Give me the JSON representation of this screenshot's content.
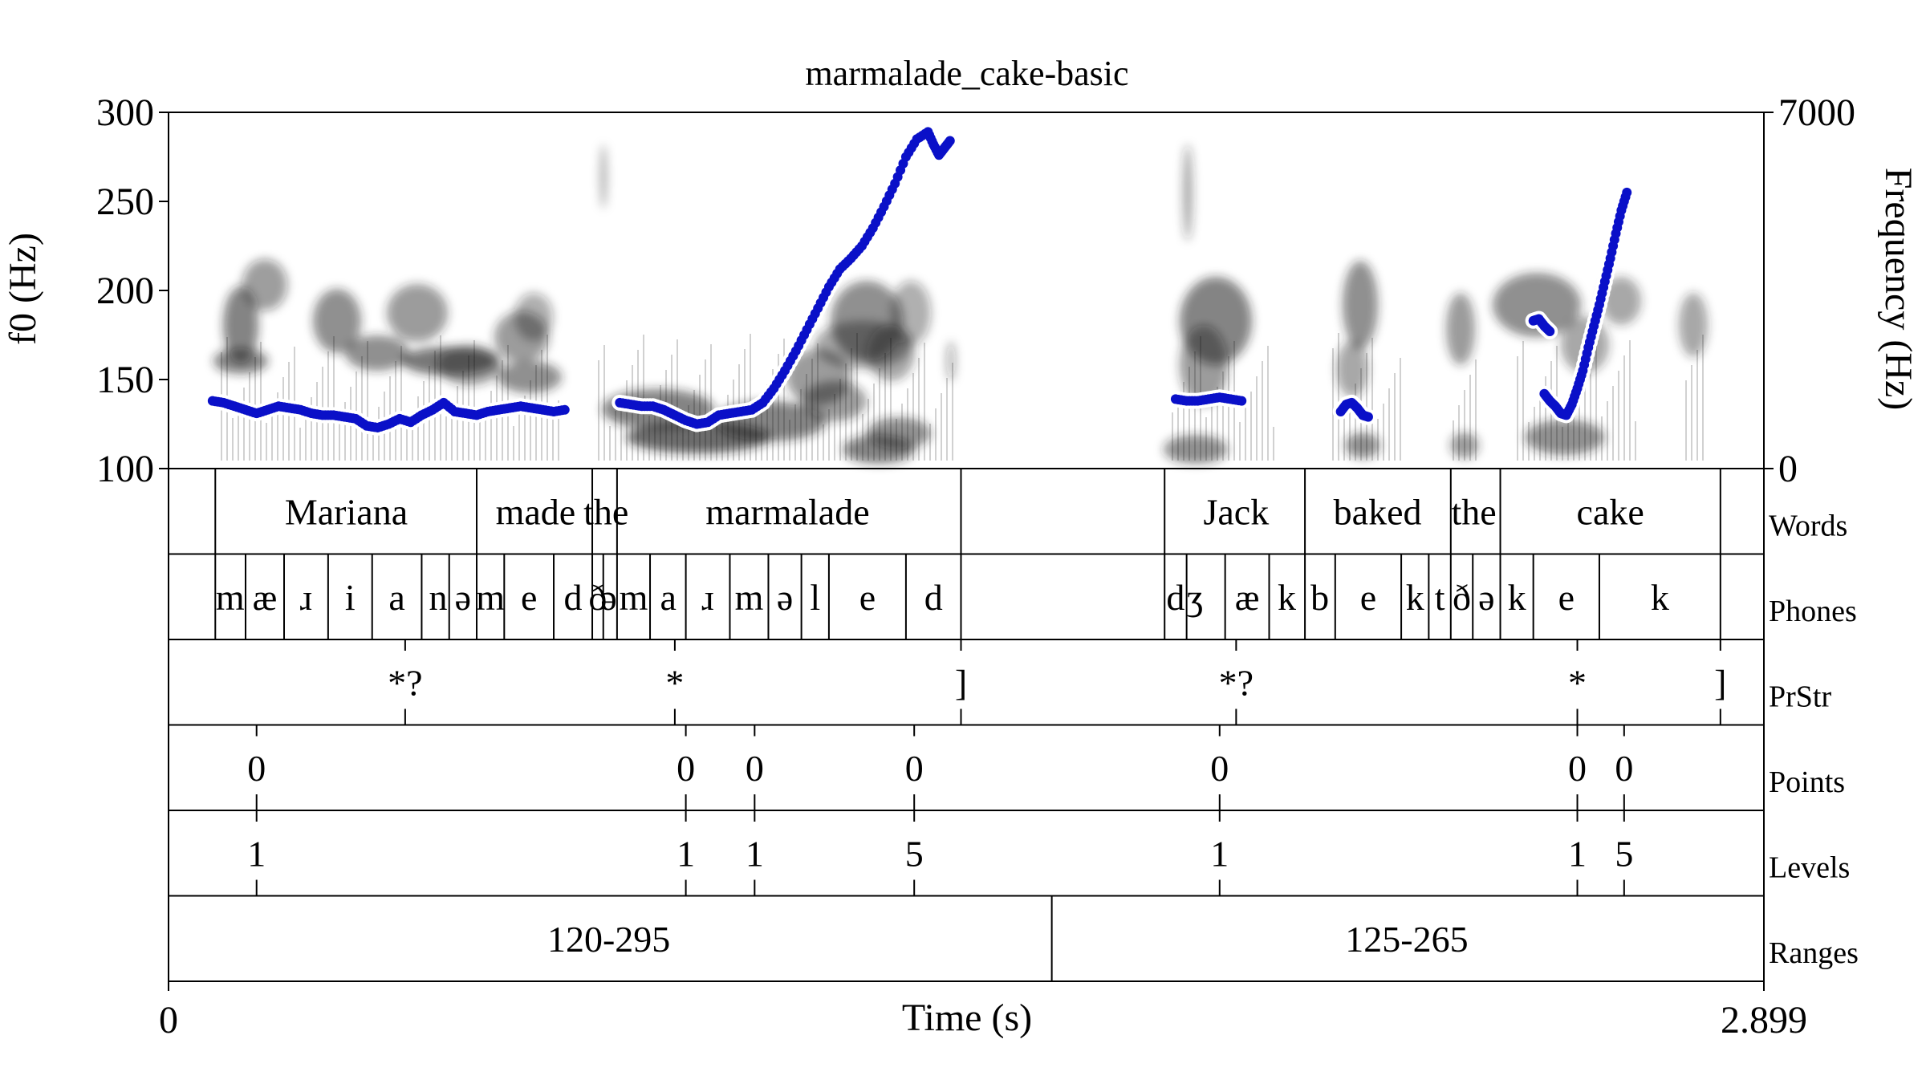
{
  "chart_data": {
    "type": "line",
    "title": "marmalade_cake-basic",
    "xlabel": "Time (s)",
    "ylabel_left": "f0 (Hz)",
    "ylabel_right": "Frequency (Hz)",
    "xlim": [
      0,
      2.899
    ],
    "xtick_labels": [
      "0",
      "2.899"
    ],
    "ylim_left": [
      100,
      300
    ],
    "yticks_left": [
      100,
      150,
      200,
      250,
      300
    ],
    "ylim_right": [
      0,
      7000
    ],
    "yticks_right": [
      0,
      7000
    ],
    "colors": {
      "f0_trace": "#0a10c8",
      "halo": "#ffffff",
      "spectrogram": "#202020"
    },
    "series": [
      {
        "name": "",
        "segments": [
          [
            [
              0.08,
              138
            ],
            [
              0.1,
              137
            ],
            [
              0.12,
              135
            ],
            [
              0.14,
              133
            ],
            [
              0.16,
              131
            ],
            [
              0.18,
              133
            ],
            [
              0.2,
              135
            ],
            [
              0.22,
              134
            ],
            [
              0.24,
              133
            ],
            [
              0.26,
              131
            ],
            [
              0.28,
              130
            ],
            [
              0.3,
              130
            ],
            [
              0.32,
              129
            ],
            [
              0.34,
              128
            ],
            [
              0.36,
              124
            ],
            [
              0.38,
              123
            ],
            [
              0.4,
              125
            ],
            [
              0.42,
              128
            ],
            [
              0.44,
              126
            ],
            [
              0.46,
              130
            ],
            [
              0.48,
              133
            ],
            [
              0.5,
              137
            ],
            [
              0.52,
              132
            ],
            [
              0.54,
              131
            ],
            [
              0.56,
              130
            ],
            [
              0.58,
              132
            ],
            [
              0.6,
              133
            ],
            [
              0.62,
              134
            ],
            [
              0.64,
              135
            ],
            [
              0.66,
              134
            ],
            [
              0.68,
              133
            ],
            [
              0.7,
              132
            ],
            [
              0.72,
              133
            ]
          ],
          [
            [
              0.82,
              137
            ],
            [
              0.84,
              136
            ],
            [
              0.86,
              135
            ],
            [
              0.88,
              135
            ],
            [
              0.9,
              133
            ],
            [
              0.92,
              130
            ],
            [
              0.94,
              127
            ],
            [
              0.96,
              125
            ],
            [
              0.98,
              126
            ],
            [
              1.0,
              130
            ],
            [
              1.02,
              131
            ],
            [
              1.04,
              132
            ],
            [
              1.06,
              133
            ],
            [
              1.08,
              137
            ],
            [
              1.1,
              145
            ],
            [
              1.12,
              155
            ],
            [
              1.14,
              166
            ],
            [
              1.16,
              178
            ],
            [
              1.18,
              190
            ],
            [
              1.2,
              202
            ],
            [
              1.22,
              212
            ],
            [
              1.24,
              218
            ],
            [
              1.26,
              225
            ],
            [
              1.28,
              235
            ],
            [
              1.3,
              247
            ],
            [
              1.32,
              260
            ],
            [
              1.34,
              275
            ],
            [
              1.36,
              285
            ],
            [
              1.38,
              289
            ],
            [
              1.39,
              282
            ],
            [
              1.4,
              276
            ],
            [
              1.41,
              280
            ],
            [
              1.42,
              284
            ]
          ],
          [
            [
              1.83,
              139
            ],
            [
              1.85,
              138
            ],
            [
              1.87,
              138
            ],
            [
              1.89,
              139
            ],
            [
              1.91,
              140
            ],
            [
              1.93,
              139
            ],
            [
              1.95,
              138
            ]
          ],
          [
            [
              2.13,
              132
            ],
            [
              2.14,
              136
            ],
            [
              2.15,
              137
            ],
            [
              2.16,
              134
            ],
            [
              2.17,
              130
            ],
            [
              2.18,
              129
            ]
          ],
          [
            [
              2.48,
              183
            ],
            [
              2.49,
              184
            ],
            [
              2.5,
              180
            ],
            [
              2.51,
              177
            ]
          ],
          [
            [
              2.5,
              142
            ],
            [
              2.51,
              138
            ],
            [
              2.52,
              135
            ],
            [
              2.53,
              131
            ],
            [
              2.54,
              130
            ],
            [
              2.55,
              136
            ],
            [
              2.56,
              145
            ],
            [
              2.57,
              155
            ],
            [
              2.58,
              168
            ],
            [
              2.59,
              180
            ],
            [
              2.6,
              192
            ],
            [
              2.61,
              205
            ],
            [
              2.62,
              218
            ],
            [
              2.63,
              232
            ],
            [
              2.64,
              245
            ],
            [
              2.65,
              255
            ]
          ]
        ]
      }
    ],
    "tiers": [
      {
        "name": "Words",
        "type": "interval",
        "boundaries": [
          0.085,
          0.56,
          0.77,
          0.815,
          1.44,
          1.81,
          2.065,
          2.33,
          2.42,
          2.82
        ],
        "labels": [
          {
            "t": 0.323,
            "text": "Mariana"
          },
          {
            "t": 0.667,
            "text": "made"
          },
          {
            "t": 0.795,
            "text": "the"
          },
          {
            "t": 1.125,
            "text": "marmalade"
          },
          {
            "t": 1.94,
            "text": "Jack"
          },
          {
            "t": 2.197,
            "text": "baked"
          },
          {
            "t": 2.372,
            "text": "the"
          },
          {
            "t": 2.62,
            "text": "cake"
          }
        ]
      },
      {
        "name": "Phones",
        "type": "interval",
        "boundaries": [
          0.085,
          0.14,
          0.21,
          0.29,
          0.37,
          0.46,
          0.51,
          0.56,
          0.61,
          0.7,
          0.77,
          0.79,
          0.815,
          0.875,
          0.94,
          1.02,
          1.09,
          1.15,
          1.2,
          1.34,
          1.44,
          1.81,
          1.85,
          1.92,
          2.0,
          2.065,
          2.12,
          2.24,
          2.29,
          2.33,
          2.37,
          2.42,
          2.48,
          2.6,
          2.82
        ],
        "labels": [
          {
            "t": 0.112,
            "text": "m"
          },
          {
            "t": 0.175,
            "text": "æ"
          },
          {
            "t": 0.25,
            "text": "ɹ"
          },
          {
            "t": 0.33,
            "text": "i"
          },
          {
            "t": 0.415,
            "text": "a"
          },
          {
            "t": 0.49,
            "text": "n"
          },
          {
            "t": 0.535,
            "text": "ə"
          },
          {
            "t": 0.585,
            "text": "m"
          },
          {
            "t": 0.655,
            "text": "e"
          },
          {
            "t": 0.735,
            "text": "d"
          },
          {
            "t": 0.78,
            "text": "ð"
          },
          {
            "t": 0.8,
            "text": "ə"
          },
          {
            "t": 0.845,
            "text": "m"
          },
          {
            "t": 0.908,
            "text": "a"
          },
          {
            "t": 0.98,
            "text": "ɹ"
          },
          {
            "t": 1.055,
            "text": "m"
          },
          {
            "t": 1.12,
            "text": "ə"
          },
          {
            "t": 1.175,
            "text": "l"
          },
          {
            "t": 1.27,
            "text": "e"
          },
          {
            "t": 1.39,
            "text": "d"
          },
          {
            "t": 1.83,
            "text": "d"
          },
          {
            "t": 1.865,
            "text": "ʒ"
          },
          {
            "t": 1.96,
            "text": "æ"
          },
          {
            "t": 2.032,
            "text": "k"
          },
          {
            "t": 2.092,
            "text": "b"
          },
          {
            "t": 2.18,
            "text": "e"
          },
          {
            "t": 2.265,
            "text": "k"
          },
          {
            "t": 2.31,
            "text": "t"
          },
          {
            "t": 2.35,
            "text": "ð"
          },
          {
            "t": 2.395,
            "text": "ə"
          },
          {
            "t": 2.45,
            "text": "k"
          },
          {
            "t": 2.54,
            "text": "e"
          },
          {
            "t": 2.71,
            "text": "k"
          }
        ]
      },
      {
        "name": "PrStr",
        "type": "point",
        "points": [
          {
            "t": 0.43,
            "text": "*?"
          },
          {
            "t": 0.92,
            "text": "*"
          },
          {
            "t": 1.44,
            "text": "]"
          },
          {
            "t": 1.94,
            "text": "*?"
          },
          {
            "t": 2.56,
            "text": "*"
          },
          {
            "t": 2.82,
            "text": "]"
          }
        ]
      },
      {
        "name": "Points",
        "type": "point",
        "points": [
          {
            "t": 0.16,
            "text": "0"
          },
          {
            "t": 0.94,
            "text": "0"
          },
          {
            "t": 1.065,
            "text": "0"
          },
          {
            "t": 1.355,
            "text": "0"
          },
          {
            "t": 1.91,
            "text": "0"
          },
          {
            "t": 2.56,
            "text": "0"
          },
          {
            "t": 2.645,
            "text": "0"
          }
        ]
      },
      {
        "name": "Levels",
        "type": "point",
        "points": [
          {
            "t": 0.16,
            "text": "1"
          },
          {
            "t": 0.94,
            "text": "1"
          },
          {
            "t": 1.065,
            "text": "1"
          },
          {
            "t": 1.355,
            "text": "5"
          },
          {
            "t": 1.91,
            "text": "1"
          },
          {
            "t": 2.56,
            "text": "1"
          },
          {
            "t": 2.645,
            "text": "5"
          }
        ]
      },
      {
        "name": "Ranges",
        "type": "interval",
        "boundaries": [
          0,
          1.605,
          2.899
        ],
        "labels": [
          {
            "t": 0.8,
            "text": "120-295"
          },
          {
            "t": 2.25,
            "text": "125-265"
          }
        ]
      }
    ]
  }
}
